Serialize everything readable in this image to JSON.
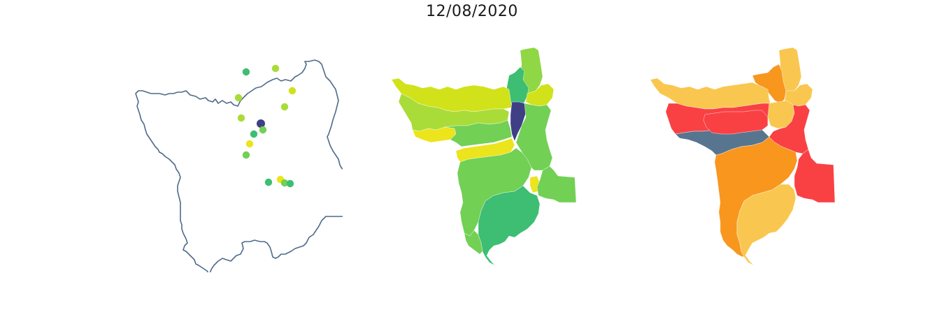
{
  "figure": {
    "title": "12/08/2020"
  },
  "colors": {
    "outline": "#4f6b8a",
    "viridis_dark": "#3f3f86",
    "viridis_teal": "#2d9f85",
    "viridis_green": "#3dbe72",
    "viridis_lightgreen": "#72d055",
    "viridis_yellowgreen": "#a9dc38",
    "viridis_lime": "#d1e21b",
    "viridis_yellow": "#ece41c",
    "risk_gray": "#58758f",
    "risk_red": "#f94144",
    "risk_orange": "#f8961e",
    "risk_yellow": "#f9c74f"
  },
  "panels": [
    {
      "name": "station-points-map",
      "points": [
        {
          "color": "viridis_green"
        },
        {
          "color": "viridis_yellowgreen"
        },
        {
          "color": "viridis_lime"
        },
        {
          "color": "viridis_yellowgreen"
        },
        {
          "color": "viridis_yellowgreen"
        },
        {
          "color": "viridis_yellowgreen"
        },
        {
          "color": "viridis_dark"
        },
        {
          "color": "viridis_lightgreen"
        },
        {
          "color": "viridis_green"
        },
        {
          "color": "viridis_yellow"
        },
        {
          "color": "viridis_lightgreen"
        },
        {
          "color": "viridis_green"
        },
        {
          "color": "viridis_yellow"
        },
        {
          "color": "viridis_lightgreen"
        },
        {
          "color": "viridis_green"
        }
      ]
    },
    {
      "name": "municipality-choropleth-viridis"
    },
    {
      "name": "municipality-choropleth-risk"
    }
  ]
}
